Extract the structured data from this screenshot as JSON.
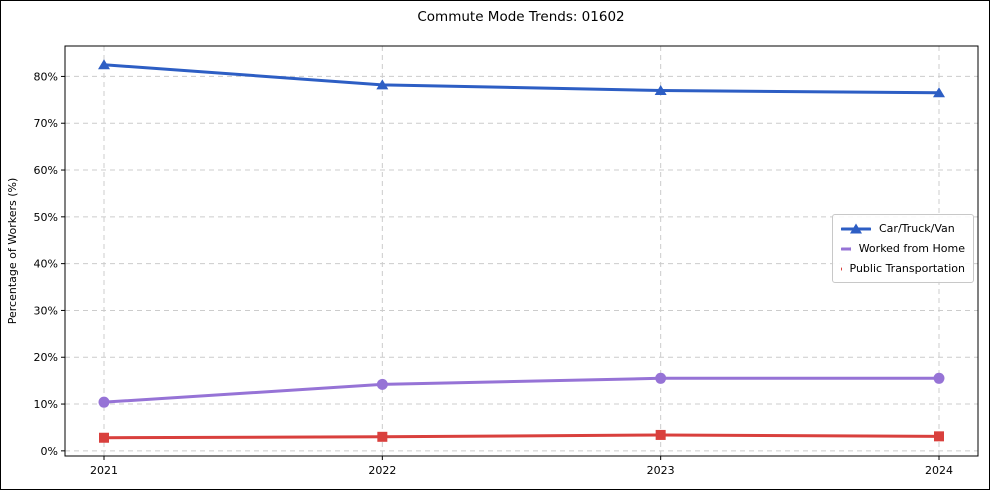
{
  "chart_data": {
    "type": "line",
    "title": "Commute Mode Trends: 01602",
    "xlabel": "",
    "ylabel": "Percentage of Workers (%)",
    "categories": [
      "2021",
      "2022",
      "2023",
      "2024"
    ],
    "series": [
      {
        "name": "Car/Truck/Van",
        "color": "#2d5ec4",
        "marker": "triangle",
        "values": [
          82.5,
          78.2,
          77.0,
          76.5
        ]
      },
      {
        "name": "Worked from Home",
        "color": "#9673d6",
        "marker": "circle",
        "values": [
          10.4,
          14.2,
          15.5,
          15.5
        ]
      },
      {
        "name": "Public Transportation",
        "color": "#d9403d",
        "marker": "square",
        "values": [
          2.8,
          3.0,
          3.4,
          3.1
        ]
      }
    ],
    "yticks": [
      0,
      10,
      20,
      30,
      40,
      50,
      60,
      70,
      80
    ],
    "ytick_suffix": "%",
    "ylim": [
      -1.1,
      86.5
    ],
    "grid": true,
    "grid_color": "#cccccc",
    "axis_color": "#000000",
    "legend_position": "center right"
  }
}
